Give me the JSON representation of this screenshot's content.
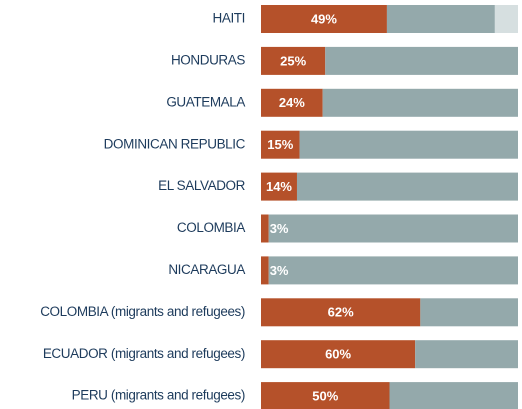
{
  "chart_data": {
    "type": "stacked-bar-horizontal",
    "categories": [
      "HAITI",
      "HONDURAS",
      "GUATEMALA",
      "DOMINICAN REPUBLIC",
      "EL SALVADOR",
      "COLOMBIA",
      "NICARAGUA",
      "COLOMBIA (migrants and refugees)",
      "ECUADOR (migrants and refugees)",
      "PERU (migrants and refugees)"
    ],
    "series": [
      {
        "color": "#b5512a",
        "values": [
          49,
          25,
          24,
          15,
          14,
          3,
          3,
          62,
          60,
          50
        ],
        "value_labels": [
          "49%",
          "25%",
          "24%",
          "15%",
          "14%",
          "3%",
          "3%",
          "62%",
          "60%",
          "50%"
        ]
      },
      {
        "color": "#94a9ab",
        "values": [
          42,
          75,
          76,
          85,
          86,
          97,
          97,
          38,
          40,
          50
        ]
      },
      {
        "color": "#d6dfe0",
        "values": [
          9,
          0,
          0,
          0,
          0,
          0,
          0,
          0,
          0,
          0
        ]
      }
    ],
    "xlim": [
      0,
      100
    ]
  }
}
